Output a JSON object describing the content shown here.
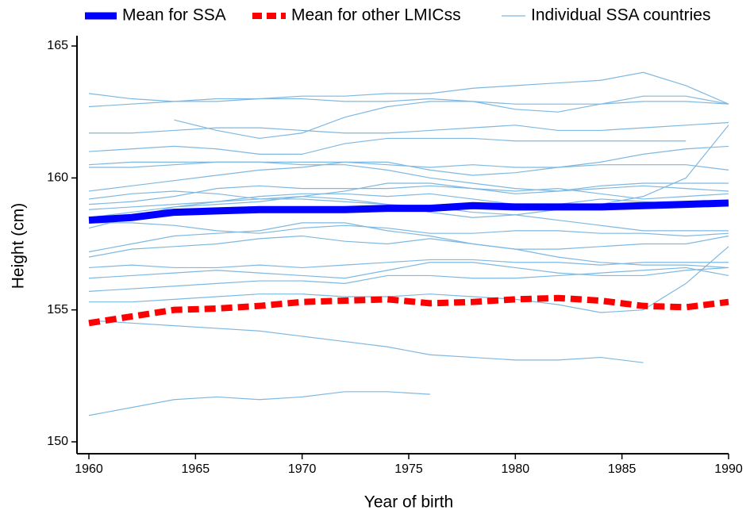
{
  "chart_data": {
    "type": "line",
    "x_label": "Year of birth",
    "y_label": "Height (cm)",
    "x": [
      1960,
      1962,
      1964,
      1966,
      1968,
      1970,
      1972,
      1974,
      1976,
      1978,
      1980,
      1982,
      1984,
      1986,
      1988,
      1990
    ],
    "xlim": [
      1960,
      1990
    ],
    "xticks": [
      1960,
      1965,
      1970,
      1975,
      1980,
      1985,
      1990
    ],
    "ylim": [
      150,
      165
    ],
    "yticks": [
      150,
      155,
      160,
      165
    ],
    "grid": false,
    "legend": "top",
    "series": [
      {
        "name": "Mean for SSA",
        "color": "#0000ff",
        "style": "solid",
        "values": [
          158.4,
          158.5,
          158.7,
          158.75,
          158.8,
          158.8,
          158.8,
          158.85,
          158.85,
          158.95,
          158.9,
          158.9,
          158.9,
          158.95,
          159.0,
          159.05
        ]
      },
      {
        "name": "Mean for other LMICss",
        "color": "#ff0000",
        "style": "dashed",
        "values": [
          154.5,
          154.75,
          155.0,
          155.05,
          155.15,
          155.3,
          155.35,
          155.4,
          155.25,
          155.3,
          155.4,
          155.45,
          155.35,
          155.15,
          155.1,
          155.3
        ]
      },
      {
        "name": "Individual SSA countries",
        "color": "#7fb8e0",
        "style": "thin",
        "values": [
          [
            163.2,
            163.0,
            162.9,
            162.9,
            163.0,
            163.1,
            163.1,
            163.2,
            163.2,
            163.4,
            163.5,
            163.6,
            163.7,
            164.0,
            163.5,
            162.8
          ],
          [
            162.7,
            162.8,
            162.9,
            163.0,
            163.0,
            163.0,
            162.9,
            162.9,
            163.0,
            162.9,
            162.8,
            162.8,
            162.8,
            162.9,
            162.9,
            162.8
          ],
          [
            null,
            null,
            162.2,
            161.8,
            161.5,
            161.7,
            162.3,
            162.7,
            162.9,
            162.9,
            162.6,
            162.5,
            162.8,
            163.1,
            163.1,
            162.8
          ],
          [
            161.7,
            161.7,
            161.8,
            161.9,
            161.9,
            161.8,
            161.7,
            161.7,
            161.8,
            161.9,
            162.0,
            161.8,
            161.8,
            161.9,
            162.0,
            162.1
          ],
          [
            161.0,
            161.1,
            161.2,
            161.1,
            160.9,
            160.9,
            161.3,
            161.5,
            161.5,
            161.5,
            161.4,
            161.4,
            161.4,
            161.4,
            161.4,
            null
          ],
          [
            160.5,
            160.6,
            160.6,
            160.6,
            160.6,
            160.6,
            160.6,
            160.5,
            160.4,
            160.5,
            160.4,
            160.4,
            160.5,
            160.5,
            160.5,
            160.3
          ],
          [
            160.4,
            160.4,
            160.5,
            160.6,
            160.6,
            160.5,
            160.5,
            160.3,
            160.0,
            159.8,
            159.6,
            159.5,
            159.7,
            159.8,
            159.8,
            159.8
          ],
          [
            159.5,
            159.7,
            159.9,
            160.1,
            160.3,
            160.4,
            160.6,
            160.6,
            160.3,
            160.1,
            160.2,
            160.4,
            160.6,
            160.9,
            161.1,
            161.2
          ],
          [
            159.2,
            159.4,
            159.5,
            159.4,
            159.2,
            159.3,
            159.5,
            159.8,
            159.8,
            159.6,
            159.4,
            159.5,
            159.6,
            159.7,
            159.6,
            159.5
          ],
          [
            159.0,
            159.1,
            159.3,
            159.6,
            159.7,
            159.6,
            159.6,
            159.6,
            159.7,
            159.6,
            159.5,
            159.6,
            159.4,
            159.2,
            159.3,
            159.4
          ],
          [
            158.8,
            158.9,
            159.0,
            159.1,
            159.3,
            159.4,
            159.4,
            159.3,
            159.4,
            159.2,
            159.0,
            159.0,
            159.2,
            159.1,
            159.0,
            159.0
          ],
          [
            158.1,
            158.5,
            158.9,
            159.1,
            159.2,
            159.2,
            159.1,
            159.0,
            158.9,
            158.7,
            158.6,
            158.4,
            158.2,
            158.0,
            158.0,
            158.0
          ],
          [
            158.3,
            158.3,
            158.2,
            158.0,
            157.9,
            158.1,
            158.2,
            158.1,
            157.9,
            157.9,
            158.0,
            158.0,
            157.9,
            157.9,
            157.8,
            157.9
          ],
          [
            157.2,
            157.5,
            157.8,
            157.9,
            158.0,
            158.3,
            158.3,
            158.0,
            157.8,
            157.5,
            157.3,
            157.3,
            157.4,
            157.5,
            157.5,
            157.8
          ],
          [
            157.0,
            157.3,
            157.4,
            157.5,
            157.7,
            157.8,
            157.6,
            157.5,
            157.7,
            157.5,
            157.3,
            157.0,
            156.8,
            156.7,
            156.7,
            156.6
          ],
          [
            156.6,
            156.7,
            156.6,
            156.6,
            156.7,
            156.6,
            156.7,
            156.8,
            156.9,
            156.9,
            156.8,
            156.8,
            156.7,
            156.8,
            156.8,
            156.8
          ],
          [
            156.2,
            156.3,
            156.4,
            156.5,
            156.4,
            156.3,
            156.2,
            156.5,
            156.8,
            156.8,
            156.6,
            156.4,
            156.3,
            156.3,
            156.5,
            156.6
          ],
          [
            155.7,
            155.8,
            155.9,
            156.0,
            156.1,
            156.1,
            156.0,
            156.3,
            156.3,
            156.2,
            156.2,
            156.3,
            156.4,
            156.5,
            156.6,
            156.3
          ],
          [
            155.3,
            155.3,
            155.4,
            155.5,
            155.6,
            155.6,
            155.5,
            155.5,
            155.6,
            155.5,
            155.4,
            155.2,
            154.9,
            155.0,
            156.0,
            157.4
          ],
          [
            154.6,
            154.5,
            154.4,
            154.3,
            154.2,
            154.0,
            153.8,
            153.6,
            153.3,
            153.2,
            153.1,
            153.1,
            153.2,
            153.0,
            null,
            null
          ],
          [
            151.0,
            151.3,
            151.6,
            151.7,
            151.6,
            151.7,
            151.9,
            151.9,
            151.8,
            null,
            null,
            null,
            null,
            null,
            null,
            null
          ],
          [
            158.5,
            158.7,
            158.9,
            159.0,
            159.1,
            159.3,
            159.2,
            159.0,
            158.7,
            158.5,
            158.6,
            158.8,
            159.0,
            159.3,
            160.0,
            162.0
          ]
        ]
      }
    ]
  }
}
